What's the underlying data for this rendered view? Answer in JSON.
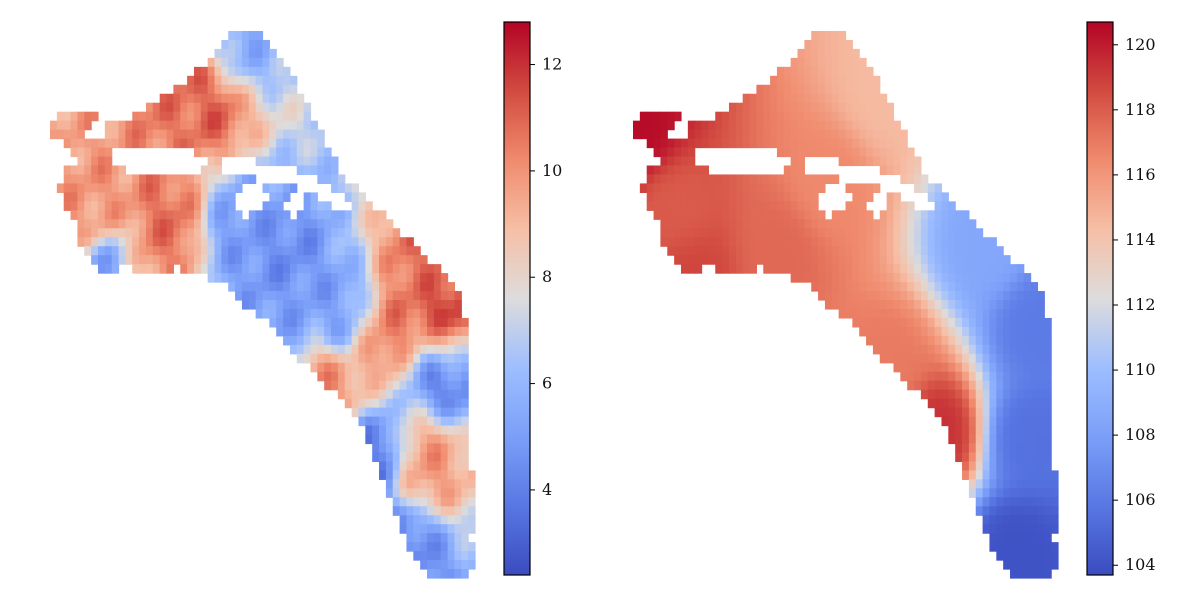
{
  "chart_data": [
    {
      "type": "heatmap",
      "title": "",
      "colormap": "coolwarm",
      "colorbar": {
        "min": 2.4,
        "max": 12.8,
        "ticks": [
          4,
          6,
          8,
          10,
          12
        ]
      },
      "field": {
        "background": 7.6,
        "hotspots": [
          {
            "x": 0.38,
            "y": 0.13,
            "value": 11.3
          },
          {
            "x": 0.3,
            "y": 0.12,
            "value": 10.6
          },
          {
            "x": 0.1,
            "y": 0.33,
            "value": 10.0
          },
          {
            "x": 0.27,
            "y": 0.37,
            "value": 10.9
          },
          {
            "x": 0.23,
            "y": 0.45,
            "value": 10.4
          },
          {
            "x": 0.87,
            "y": 0.45,
            "value": 10.8
          },
          {
            "x": 0.78,
            "y": 0.55,
            "value": 10.9
          },
          {
            "x": 0.93,
            "y": 0.55,
            "value": 12.6
          },
          {
            "x": 0.65,
            "y": 0.66,
            "value": 10.3
          },
          {
            "x": 0.88,
            "y": 0.8,
            "value": 10.1
          },
          {
            "x": 0.45,
            "y": 0.38,
            "value": 4.9
          },
          {
            "x": 0.55,
            "y": 0.43,
            "value": 4.4
          },
          {
            "x": 0.7,
            "y": 0.52,
            "value": 4.6
          },
          {
            "x": 0.55,
            "y": 0.52,
            "value": 5.0
          },
          {
            "x": 0.15,
            "y": 0.46,
            "value": 4.3
          },
          {
            "x": 0.93,
            "y": 0.62,
            "value": 3.3
          },
          {
            "x": 0.76,
            "y": 0.79,
            "value": 3.6
          },
          {
            "x": 0.83,
            "y": 0.94,
            "value": 4.2
          },
          {
            "x": 0.44,
            "y": 0.05,
            "value": 5.3
          }
        ]
      }
    },
    {
      "type": "heatmap",
      "title": "",
      "colormap": "coolwarm",
      "colorbar": {
        "min": 103.7,
        "max": 120.7,
        "ticks": [
          104,
          106,
          108,
          110,
          112,
          114,
          116,
          118,
          120
        ]
      },
      "field": {
        "background": 113,
        "hotspots": [
          {
            "x": 0.0,
            "y": 0.19,
            "value": 120.5
          },
          {
            "x": 0.1,
            "y": 0.35,
            "value": 118.0
          },
          {
            "x": 0.13,
            "y": 0.45,
            "value": 118.8
          },
          {
            "x": 0.35,
            "y": 0.4,
            "value": 117.6
          },
          {
            "x": 0.45,
            "y": 0.3,
            "value": 116.5
          },
          {
            "x": 0.6,
            "y": 0.62,
            "value": 117.0
          },
          {
            "x": 0.72,
            "y": 0.74,
            "value": 119.5
          },
          {
            "x": 0.6,
            "y": 0.12,
            "value": 114.5
          },
          {
            "x": 0.83,
            "y": 0.4,
            "value": 108.5
          },
          {
            "x": 0.95,
            "y": 0.55,
            "value": 106.0
          },
          {
            "x": 0.93,
            "y": 0.75,
            "value": 105.5
          },
          {
            "x": 0.9,
            "y": 0.95,
            "value": 104.0
          }
        ]
      }
    }
  ]
}
